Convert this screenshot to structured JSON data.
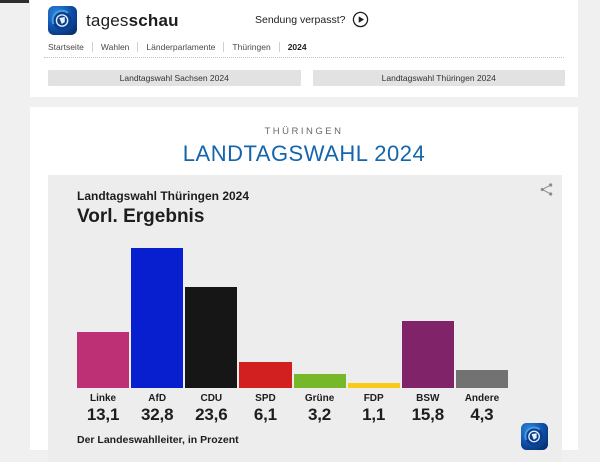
{
  "header": {
    "brand_regular": "tages",
    "brand_bold": "schau",
    "missed_label": "Sendung verpasst?",
    "breadcrumb": [
      {
        "id": "startseite",
        "label": "Startseite",
        "active": false
      },
      {
        "id": "wahlen",
        "label": "Wahlen",
        "active": false
      },
      {
        "id": "laenderparlamente",
        "label": "Länderparlamente",
        "active": false
      },
      {
        "id": "thueringen",
        "label": "Thüringen",
        "active": false
      },
      {
        "id": "2024",
        "label": "2024",
        "active": true
      }
    ]
  },
  "election_nav": {
    "buttons": [
      {
        "id": "sachsen",
        "label": "Landtagswahl Sachsen 2024"
      },
      {
        "id": "thueringen",
        "label": "Landtagswahl Thüringen 2024"
      }
    ]
  },
  "page": {
    "kicker": "THÜRINGEN",
    "title": "LANDTAGSWAHL 2024"
  },
  "chart_data": {
    "type": "bar",
    "subtitle": "Landtagswahl Thüringen 2024",
    "title": "Vorl. Ergebnis",
    "categories": [
      "Linke",
      "AfD",
      "CDU",
      "SPD",
      "Grüne",
      "FDP",
      "BSW",
      "Andere"
    ],
    "values": [
      13.1,
      32.8,
      23.6,
      6.1,
      3.2,
      1.1,
      15.8,
      4.3
    ],
    "value_labels": [
      "13,1",
      "32,8",
      "23,6",
      "6,1",
      "3,2",
      "1,1",
      "15,8",
      "4,3"
    ],
    "bar_colors": [
      "#be3075",
      "#071fce",
      "#161616",
      "#d22020",
      "#76b82a",
      "#f9ca18",
      "#812368",
      "#727272"
    ],
    "unit": "Prozent",
    "source": "Der Landeswahlleiter, in Prozent",
    "ylim": [
      0,
      32.8
    ],
    "grid": false,
    "legend_position": "none"
  },
  "theme": {
    "accent_blue": "#1565ad",
    "page_bg": "#f0f0f0",
    "card_bg": "#ededed",
    "button_bg": "#e2e2e2",
    "text_dark": "#1d1d1d",
    "logo_blue": "#0e4fa8"
  }
}
